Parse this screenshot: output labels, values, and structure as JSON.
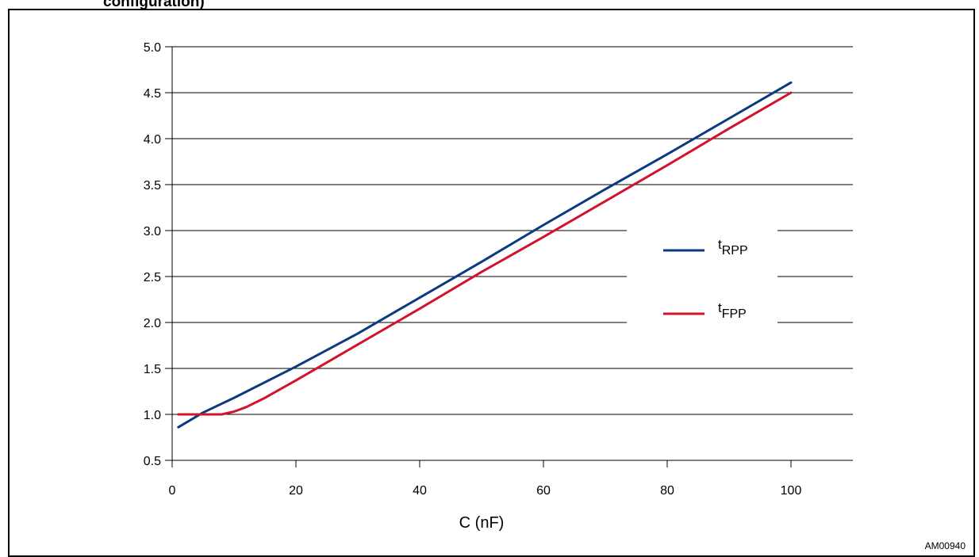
{
  "header_fragment": "configuration)",
  "figure_code": "AM00940",
  "colors": {
    "tRPP": "#0a3a80",
    "tFPP": "#d3132c",
    "grid": "#000000"
  },
  "chart_data": {
    "type": "line",
    "title": "",
    "xlabel": "C (nF)",
    "ylabel": "",
    "xlim": [
      0,
      110
    ],
    "ylim": [
      0.5,
      5.0
    ],
    "xticks": [
      0,
      20,
      40,
      60,
      80,
      100
    ],
    "xtick_labels": [
      "0",
      "20",
      "40",
      "60",
      "80",
      "100"
    ],
    "yticks": [
      0.5,
      1.0,
      1.5,
      2.0,
      2.5,
      3.0,
      3.5,
      4.0,
      4.5,
      5.0
    ],
    "ytick_labels": [
      "0.5",
      "1.0",
      "1.5",
      "2.0",
      "2.5",
      "3.0",
      "3.5",
      "4.0",
      "4.5",
      "5.0"
    ],
    "grid": "horizontal",
    "legend_position": "right",
    "series": [
      {
        "key": "tRPP",
        "name": "tRPP",
        "name_main": "t",
        "name_sub": "RPP",
        "color": "#0a3a80",
        "x": [
          1,
          5,
          10,
          20,
          30,
          40,
          50,
          60,
          70,
          80,
          90,
          100
        ],
        "y": [
          0.86,
          1.02,
          1.18,
          1.52,
          1.88,
          2.27,
          2.66,
          3.06,
          3.45,
          3.83,
          4.22,
          4.61
        ]
      },
      {
        "key": "tFPP",
        "name": "tFPP",
        "name_main": "t",
        "name_sub": "FPP",
        "color": "#d3132c",
        "x": [
          1,
          5,
          8,
          10,
          12,
          15,
          20,
          30,
          40,
          50,
          60,
          70,
          80,
          90,
          100
        ],
        "y": [
          1.0,
          1.0,
          1.0,
          1.03,
          1.08,
          1.18,
          1.37,
          1.76,
          2.15,
          2.55,
          2.93,
          3.32,
          3.71,
          4.11,
          4.5
        ]
      }
    ]
  }
}
